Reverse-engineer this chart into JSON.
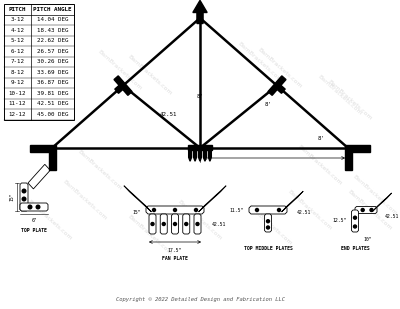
{
  "bg_color": "#ffffff",
  "pitch_table": {
    "headers": [
      "PITCH",
      "PITCH ANGLE"
    ],
    "rows": [
      [
        "3-12",
        "14.04 DEG"
      ],
      [
        "4-12",
        "18.43 DEG"
      ],
      [
        "5-12",
        "22.62 DEG"
      ],
      [
        "6-12",
        "26.57 DEG"
      ],
      [
        "7-12",
        "30.26 DEG"
      ],
      [
        "8-12",
        "33.69 DEG"
      ],
      [
        "9-12",
        "36.87 DEG"
      ],
      [
        "10-12",
        "39.81 DEG"
      ],
      [
        "11-12",
        "42.51 DEG"
      ],
      [
        "12-12",
        "45.00 DEG"
      ]
    ]
  },
  "watermark": "BarnBrackets.com",
  "copyright": "Copyright © 2022 Detailed Design and Fabrication LLC",
  "plate_labels": [
    "TOP PLATE",
    "FAN PLATE",
    "TOP MIDDLE PLATES",
    "END PLATES"
  ]
}
